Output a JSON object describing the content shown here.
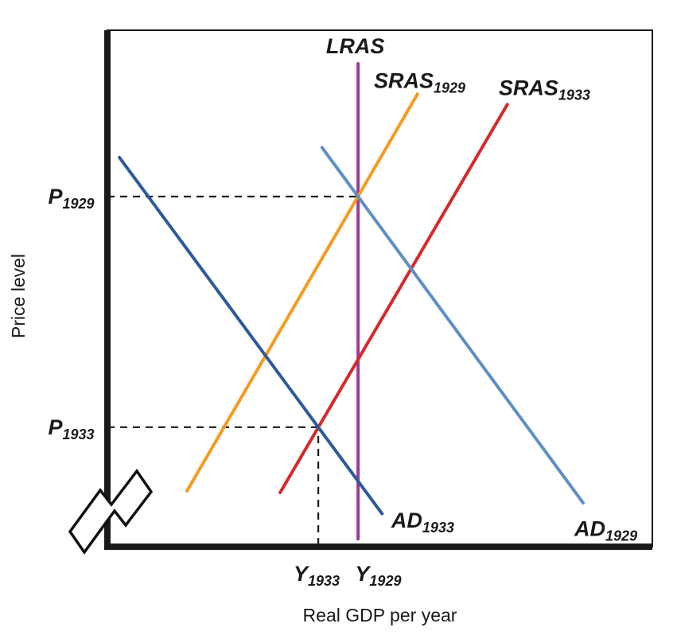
{
  "chart_data": {
    "type": "line",
    "title": "",
    "xlabel": "Real GDP per year",
    "ylabel": "Price level",
    "axes": {
      "x_range": [
        0,
        1
      ],
      "y_range": [
        0,
        1
      ],
      "grid": false,
      "axis_break_at_origin": true,
      "tick_labels_x": [
        "Y1933",
        "Y1929"
      ],
      "tick_labels_y": [
        "P1933",
        "P1929"
      ]
    },
    "colors": {
      "axis": "#1a1a1a",
      "dashed_guide": "#1a1a1a"
    },
    "series": [
      {
        "name": "LRAS",
        "color": "#9b3d96",
        "points": [
          [
            0.46,
            0.012
          ],
          [
            0.46,
            0.935
          ]
        ]
      },
      {
        "name": "SRAS 1929",
        "color": "#f59b20",
        "points": [
          [
            0.146,
            0.105
          ],
          [
            0.569,
            0.876
          ]
        ]
      },
      {
        "name": "SRAS 1933",
        "color": "#d7282b",
        "points": [
          [
            0.317,
            0.102
          ],
          [
            0.734,
            0.856
          ]
        ]
      },
      {
        "name": "AD 1933",
        "color": "#2e5a9c",
        "points": [
          [
            0.022,
            0.753
          ],
          [
            0.504,
            0.061
          ]
        ]
      },
      {
        "name": "AD 1929",
        "color": "#5e8fc4",
        "points": [
          [
            0.394,
            0.772
          ],
          [
            0.873,
            0.082
          ]
        ]
      }
    ],
    "guides": [
      {
        "name": "p1929-dashed-line",
        "from": [
          0.0,
          0.677
        ],
        "to": [
          0.46,
          0.677
        ]
      },
      {
        "name": "p1933-dashed-line",
        "from": [
          0.0,
          0.229
        ],
        "to": [
          0.387,
          0.229
        ]
      },
      {
        "name": "y1933-dashed-line",
        "from": [
          0.387,
          0.0
        ],
        "to": [
          0.387,
          0.229
        ]
      }
    ],
    "point_labels": [
      {
        "main": "LRAS",
        "sub": "",
        "x": 0.455,
        "y": 0.969,
        "anchor": "middle"
      },
      {
        "main": "SRAS",
        "sub": "1929",
        "x": 0.489,
        "y": 0.902,
        "anchor": "start"
      },
      {
        "main": "SRAS",
        "sub": "1933",
        "x": 0.718,
        "y": 0.888,
        "anchor": "start"
      },
      {
        "main": "AD",
        "sub": "1933",
        "x": 0.521,
        "y": 0.048,
        "anchor": "start"
      },
      {
        "main": "AD",
        "sub": "1929",
        "x": 0.857,
        "y": 0.032,
        "anchor": "start"
      },
      {
        "main": "P",
        "sub": "1929",
        "x": -0.024,
        "y": 0.677,
        "anchor": "end"
      },
      {
        "main": "P",
        "sub": "1933",
        "x": -0.024,
        "y": 0.229,
        "anchor": "end"
      },
      {
        "main": "Y",
        "sub": "1933",
        "x": 0.384,
        "y": -0.056,
        "anchor": "middle"
      },
      {
        "main": "Y",
        "sub": "1929",
        "x": 0.497,
        "y": -0.056,
        "anchor": "middle"
      }
    ],
    "equilibria_note": "1929 equilibrium at intersection of AD 1929, SRAS 1929 and LRAS (P1929, Y1929); 1933 equilibrium at intersection of AD 1933 and SRAS 1933 (P1933, Y1933)"
  }
}
